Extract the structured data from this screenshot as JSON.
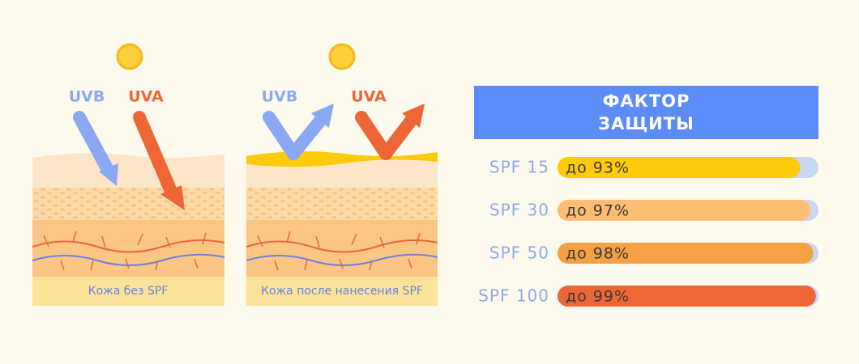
{
  "panels": [
    {
      "uvb": "UVB",
      "uva": "UVA",
      "caption": "Кожа без SPF"
    },
    {
      "uvb": "UVB",
      "uva": "UVA",
      "caption": "Кожа после нанесения SPF"
    }
  ],
  "chart_data": {
    "type": "bar",
    "orientation": "horizontal",
    "title": "ФАКТОР ЗАЩИТЫ",
    "categories": [
      "SPF 15",
      "SPF 30",
      "SPF 50",
      "SPF 100"
    ],
    "values": [
      93,
      97,
      98,
      99
    ],
    "value_labels": [
      "до 93%",
      "до 97%",
      "до 98%",
      "до 99%"
    ],
    "colors": [
      "#fdcb0a",
      "#fdbd72",
      "#f5a043",
      "#ee6636"
    ],
    "track_color": "#c9d7f6",
    "xlim": [
      0,
      100
    ]
  }
}
